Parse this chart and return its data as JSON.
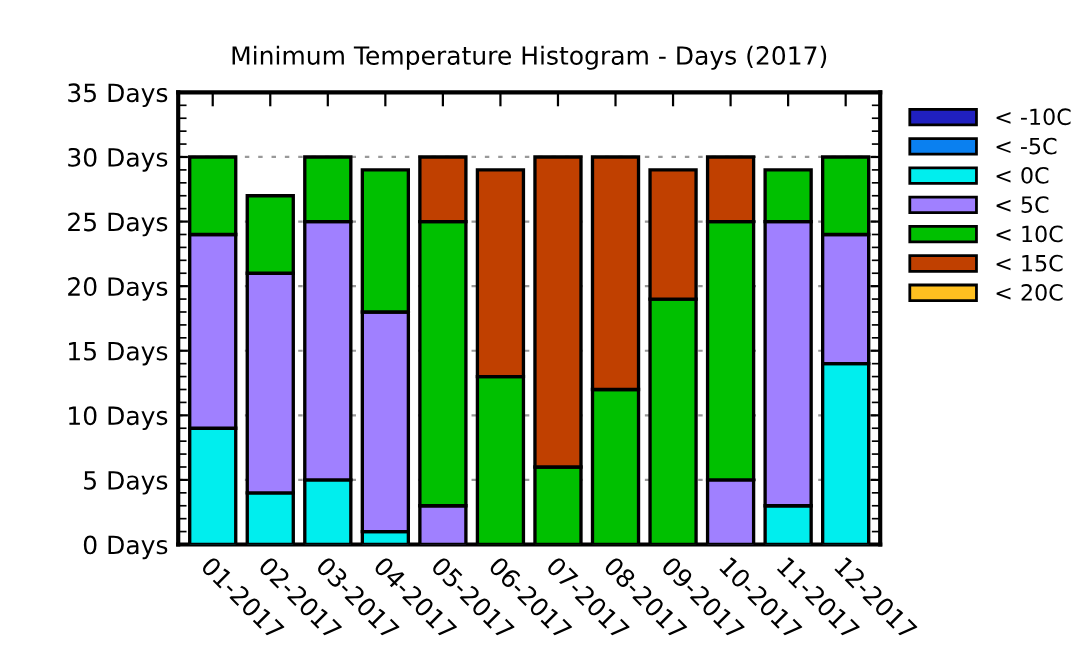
{
  "chart_data": {
    "type": "bar",
    "title": "Minimum Temperature Histogram - Days (2017)",
    "stacked": true,
    "categories": [
      "01-2017",
      "02-2017",
      "03-2017",
      "04-2017",
      "05-2017",
      "06-2017",
      "07-2017",
      "08-2017",
      "09-2017",
      "10-2017",
      "11-2017",
      "12-2017"
    ],
    "series": [
      {
        "name": "< -10C",
        "color": "#2020c0",
        "values": [
          0,
          0,
          0,
          0,
          0,
          0,
          0,
          0,
          0,
          0,
          0,
          0
        ]
      },
      {
        "name": "< -5C",
        "color": "#0a80f0",
        "values": [
          0,
          0,
          0,
          0,
          0,
          0,
          0,
          0,
          0,
          0,
          0,
          0
        ]
      },
      {
        "name": "< 0C",
        "color": "#00eeee",
        "values": [
          9,
          4,
          5,
          1,
          0,
          0,
          0,
          0,
          0,
          0,
          3,
          14
        ]
      },
      {
        "name": "< 5C",
        "color": "#a080ff",
        "values": [
          15,
          17,
          20,
          17,
          3,
          0,
          0,
          0,
          0,
          5,
          22,
          10
        ]
      },
      {
        "name": "< 10C",
        "color": "#00c000",
        "values": [
          6,
          6,
          5,
          11,
          22,
          13,
          6,
          12,
          19,
          20,
          4,
          6
        ]
      },
      {
        "name": "< 15C",
        "color": "#c04000",
        "values": [
          0,
          0,
          0,
          0,
          5,
          16,
          24,
          18,
          10,
          5,
          0,
          0
        ]
      },
      {
        "name": "< 20C",
        "color": "#ffc020",
        "values": [
          0,
          0,
          0,
          0,
          0,
          0,
          0,
          0,
          0,
          0,
          0,
          0
        ]
      }
    ],
    "ylim": [
      0,
      35
    ],
    "yticks": [
      {
        "value": 0,
        "label": "0 Days"
      },
      {
        "value": 5,
        "label": "5 Days"
      },
      {
        "value": 10,
        "label": "10 Days"
      },
      {
        "value": 15,
        "label": "15 Days"
      },
      {
        "value": 20,
        "label": "20 Days"
      },
      {
        "value": 25,
        "label": "25 Days"
      },
      {
        "value": 30,
        "label": "30 Days"
      },
      {
        "value": 35,
        "label": "35 Days"
      }
    ],
    "grid": "y",
    "legend": "top right"
  }
}
